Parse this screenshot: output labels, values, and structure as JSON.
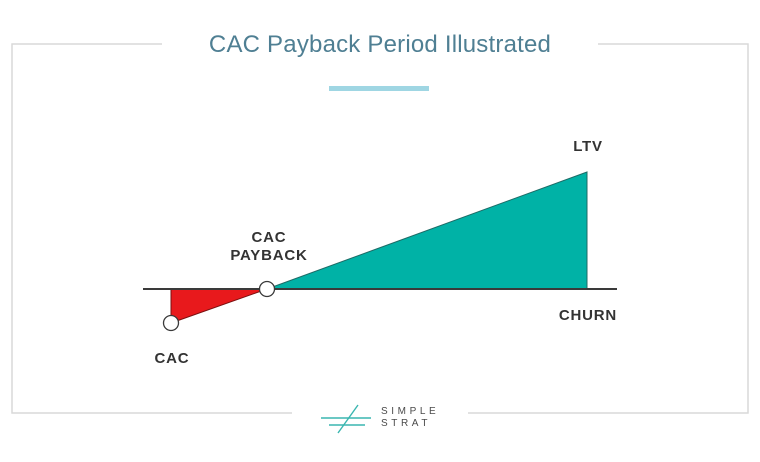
{
  "title": "CAC Payback Period Illustrated",
  "labels": {
    "ltv": "LTV",
    "cac_payback_line1": "CAC",
    "cac_payback_line2": "PAYBACK",
    "churn": "CHURN",
    "cac": "CAC"
  },
  "logo": {
    "line1": "SIMPLE",
    "line2": "STRAT",
    "icon": "slash-lines-logo-icon"
  },
  "colors": {
    "title": "#4f7f93",
    "accent_bar": "#9fd6e3",
    "frame": "#d9d9d9",
    "loss_region": "#e8191c",
    "gain_region": "#00b2a6",
    "axis": "#3a3a3a",
    "logo_icon": "#3ab6b0"
  }
}
